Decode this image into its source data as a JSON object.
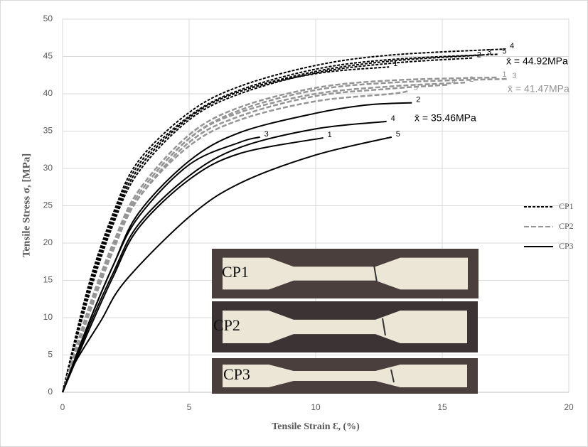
{
  "chart_data": {
    "type": "line",
    "x_label": "Tensile Strain Ɛ, (%)",
    "y_label": "Tensile Stress σ, [MPa]",
    "xlim": [
      0,
      20
    ],
    "ylim": [
      0,
      50
    ],
    "xticks": [
      0,
      5,
      10,
      15,
      20
    ],
    "yticks": [
      0,
      5,
      10,
      15,
      20,
      25,
      30,
      35,
      40,
      45,
      50
    ],
    "grid": true,
    "legend": "right",
    "groups": [
      {
        "name": "CP1",
        "color": "#000000",
        "dash": "4 2",
        "mean_label": "x̄ = 44.92MPa",
        "curves": [
          {
            "label": "4",
            "x": [
              0,
              1,
              2,
              3,
              5,
              7,
              10,
              13,
              17.5
            ],
            "values": [
              0,
              14,
              24,
              31,
              37.5,
              41,
              43.8,
              45.2,
              46
            ]
          },
          {
            "label": "5",
            "x": [
              0,
              1,
              2,
              3,
              5,
              7,
              10,
              13,
              17.2
            ],
            "values": [
              0,
              13.5,
              23.5,
              30.5,
              37,
              40.5,
              43.3,
              44.6,
              45.3
            ]
          },
          {
            "label": "3",
            "x": [
              0,
              1,
              2,
              3,
              5,
              7,
              10,
              13,
              16.6
            ],
            "values": [
              0,
              13,
              23,
              30,
              36.8,
              40.3,
              43,
              44.4,
              45.2
            ]
          },
          {
            "label": "2",
            "x": [
              0,
              1,
              2,
              3,
              5,
              7,
              10,
              13,
              16.2
            ],
            "values": [
              0,
              12.5,
              22.5,
              29.5,
              36.5,
              40,
              42.8,
              44.1,
              44.8
            ]
          },
          {
            "label": "1",
            "x": [
              0,
              1,
              2,
              3,
              5,
              7,
              10,
              12.9
            ],
            "values": [
              0,
              13,
              23,
              30,
              36.8,
              40.3,
              42.7,
              43.6
            ]
          }
        ]
      },
      {
        "name": "CP2",
        "color": "#959595",
        "dash": "7 3",
        "mean_label": "x̄ = 41.47MPa",
        "curves": [
          {
            "label": "1",
            "x": [
              0,
              1,
              2,
              3,
              5,
              7,
              10,
              13,
              17.2
            ],
            "values": [
              0,
              11,
              20,
              27,
              34.5,
              38.2,
              40.8,
              41.8,
              42.2
            ]
          },
          {
            "label": "3",
            "x": [
              0,
              1,
              2,
              3,
              5,
              7,
              10,
              13,
              17.6
            ],
            "values": [
              0,
              10.5,
              19.5,
              26.5,
              34,
              37.8,
              40.5,
              41.5,
              42
            ]
          },
          {
            "label": "2",
            "x": [
              0,
              1,
              2,
              3,
              5,
              7,
              10,
              13,
              15.9
            ],
            "values": [
              0,
              10.5,
              19.5,
              26.5,
              34,
              37.5,
              40,
              41,
              41.5
            ]
          },
          {
            "label": "4",
            "x": [
              0,
              1,
              2,
              3,
              5,
              7,
              10,
              13,
              15.2
            ],
            "values": [
              0,
              10,
              19,
              26,
              33.5,
              37,
              39.7,
              40.7,
              41.2
            ]
          },
          {
            "label": "5",
            "x": [
              0,
              1,
              2,
              3,
              5,
              7,
              10,
              13,
              13.7
            ],
            "values": [
              0,
              10,
              19,
              26,
              33,
              36.5,
              39,
              40,
              40.4
            ]
          }
        ]
      },
      {
        "name": "CP3",
        "color": "#000000",
        "dash": "",
        "mean_label": "x̄ = 35.46MPa",
        "curves": [
          {
            "label": "2",
            "x": [
              0,
              1,
              2,
              3,
              5,
              7,
              10,
              12,
              13.8
            ],
            "values": [
              0,
              9,
              17,
              24,
              31,
              34.8,
              37.4,
              38.5,
              38.8
            ]
          },
          {
            "label": "4",
            "x": [
              0,
              1,
              2,
              3,
              5,
              7,
              10,
              12.8
            ],
            "values": [
              0,
              8.5,
              16,
              22.5,
              29,
              32.8,
              35.3,
              36.3
            ]
          },
          {
            "label": "3",
            "x": [
              0,
              1,
              2,
              3,
              5,
              7,
              7.8
            ],
            "values": [
              0,
              9,
              17,
              23.5,
              30.5,
              33.5,
              34.2
            ]
          },
          {
            "label": "1",
            "x": [
              0,
              1,
              2,
              3,
              5,
              7,
              10.3
            ],
            "values": [
              0,
              8,
              15.5,
              22,
              28.5,
              32,
              34.1
            ]
          },
          {
            "label": "5",
            "x": [
              0,
              0.5,
              1.5,
              2.5,
              5,
              7,
              10,
              13
            ],
            "values": [
              0,
              4,
              9.5,
              15,
              23.5,
              28,
              31.8,
              34.2
            ]
          }
        ]
      }
    ],
    "inset_labels": [
      "CP1",
      "CP2",
      "CP3"
    ]
  }
}
